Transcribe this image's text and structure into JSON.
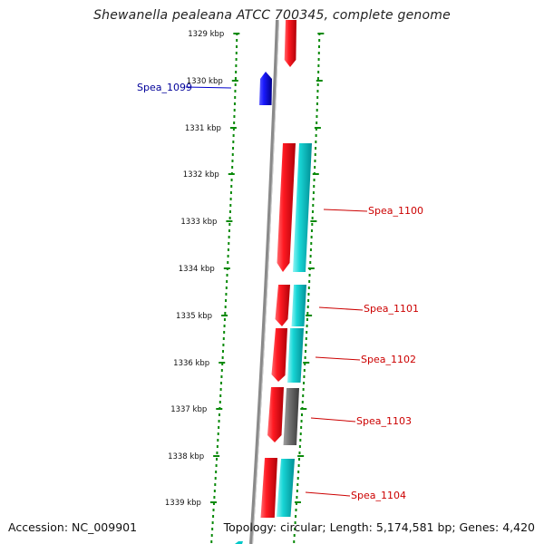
{
  "title": "Shewanella pealeana ATCC 700345, complete genome",
  "accession": "Accession: NC_009901",
  "stats": "Topology: circular; Length: 5,174,581 bp; Genes: 4,420",
  "colors": {
    "forward_cds": "#e8000b",
    "reverse_cds": "#00c8c8",
    "highlight_gene": "#0000ee",
    "other_gene": "#6a6a6a",
    "backbone": "#909090",
    "ticks": "#0a8a0a",
    "label_red": "#cc0000",
    "label_blue": "#000099"
  },
  "ticks": [
    {
      "label": "1329 kbp"
    },
    {
      "label": "1330 kbp"
    },
    {
      "label": "1331 kbp"
    },
    {
      "label": "1332 kbp"
    },
    {
      "label": "1333 kbp"
    },
    {
      "label": "1334 kbp"
    },
    {
      "label": "1335 kbp"
    },
    {
      "label": "1336 kbp"
    },
    {
      "label": "1337 kbp"
    },
    {
      "label": "1338 kbp"
    },
    {
      "label": "1339 kbp"
    }
  ],
  "gene_labels": [
    {
      "text": "Spea_1099",
      "color": "blue"
    },
    {
      "text": "Spea_1100",
      "color": "red"
    },
    {
      "text": "Spea_1101",
      "color": "red"
    },
    {
      "text": "Spea_1102",
      "color": "red"
    },
    {
      "text": "Spea_1103",
      "color": "red"
    },
    {
      "text": "Spea_1104",
      "color": "red"
    }
  ]
}
